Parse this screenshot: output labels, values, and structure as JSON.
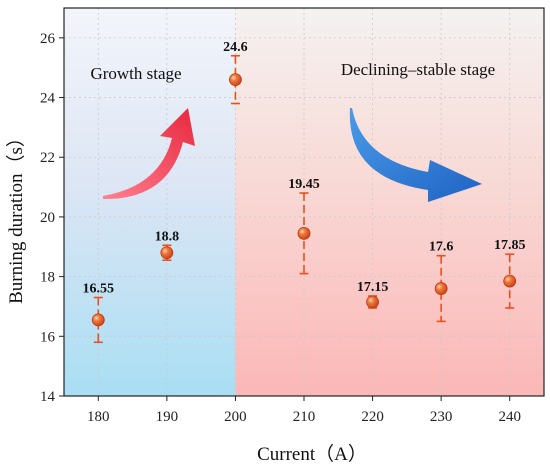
{
  "chart_data": {
    "type": "scatter",
    "xlabel": "Current（A）",
    "ylabel": "Burning duration（s）",
    "xlim": [
      175,
      245
    ],
    "ylim": [
      14,
      27
    ],
    "xticks": [
      180,
      190,
      200,
      210,
      220,
      230,
      240
    ],
    "yticks": [
      14,
      16,
      18,
      20,
      22,
      24,
      26
    ],
    "grid": true,
    "points": [
      {
        "x": 180,
        "y": 16.55,
        "label": "16.55",
        "err_low": 15.8,
        "err_high": 17.3
      },
      {
        "x": 190,
        "y": 18.8,
        "label": "18.8",
        "err_low": 18.55,
        "err_high": 19.05
      },
      {
        "x": 200,
        "y": 24.6,
        "label": "24.6",
        "err_low": 23.8,
        "err_high": 25.4
      },
      {
        "x": 210,
        "y": 19.45,
        "label": "19.45",
        "err_low": 18.1,
        "err_high": 20.8
      },
      {
        "x": 220,
        "y": 17.15,
        "label": "17.15",
        "err_low": 16.95,
        "err_high": 17.35
      },
      {
        "x": 230,
        "y": 17.6,
        "label": "17.6",
        "err_low": 16.5,
        "err_high": 18.7
      },
      {
        "x": 240,
        "y": 17.85,
        "label": "17.85",
        "err_low": 16.95,
        "err_high": 18.75
      }
    ],
    "regions": [
      {
        "name": "Growth stage",
        "x_start": 175,
        "x_end": 200
      },
      {
        "name": "Declining–stable stage",
        "x_start": 200,
        "x_end": 245
      }
    ],
    "colors": {
      "marker": "#e8501e",
      "errorbar": "#e8501e",
      "growth_bg_top": "#f3f5fa",
      "growth_bg_bottom": "#a9def3",
      "decline_bg_top": "#f4f2f1",
      "decline_bg_bottom": "#fbb7b7",
      "growth_arrow": "#f0485a",
      "decline_arrow": "#2c78d4"
    }
  }
}
